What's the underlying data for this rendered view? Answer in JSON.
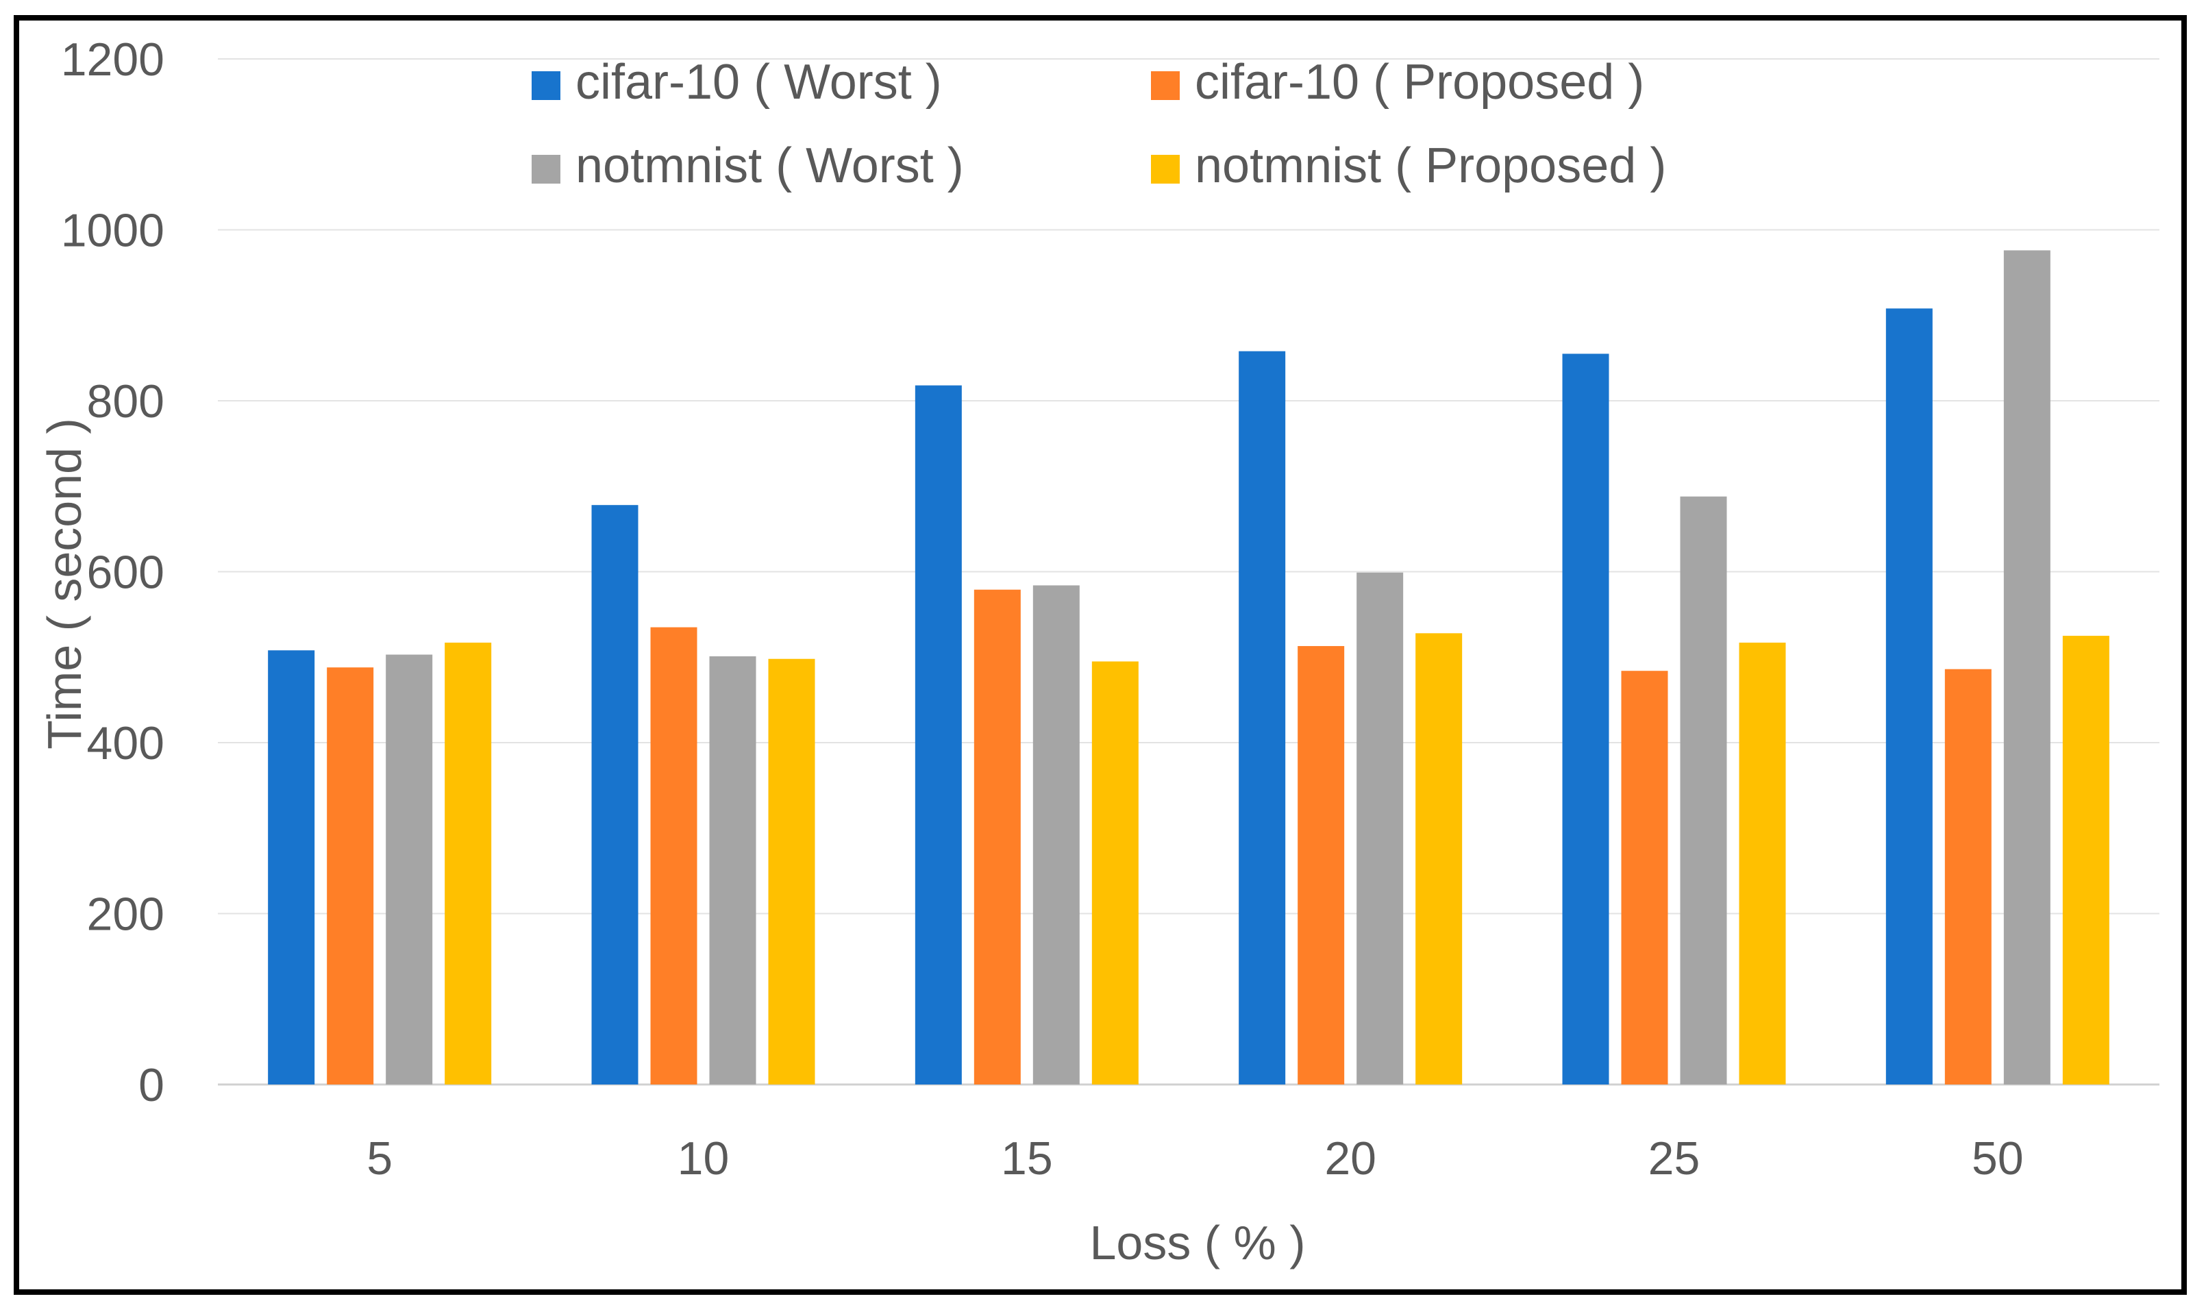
{
  "chart_data": {
    "type": "bar",
    "title": "",
    "xlabel": "Loss ( % )",
    "ylabel": "Time ( second )",
    "categories": [
      "5",
      "10",
      "15",
      "20",
      "25",
      "50"
    ],
    "ylim": [
      0,
      1200
    ],
    "yticks": [
      "0",
      "200",
      "400",
      "600",
      "800",
      "1000",
      "1200"
    ],
    "grid": true,
    "legend_position": "top",
    "series": [
      {
        "name": "cifar-10 ( Worst )",
        "color": "#1874CD",
        "values": [
          508,
          678,
          818,
          858,
          855,
          908
        ]
      },
      {
        "name": "cifar-10 ( Proposed )",
        "color": "#FF7F27",
        "values": [
          488,
          535,
          579,
          513,
          484,
          486
        ]
      },
      {
        "name": "notmnist ( Worst )",
        "color": "#A5A5A5",
        "values": [
          503,
          501,
          584,
          599,
          688,
          976
        ]
      },
      {
        "name": "notmnist ( Proposed )",
        "color": "#FFC000",
        "values": [
          517,
          498,
          495,
          528,
          517,
          525
        ]
      }
    ]
  }
}
